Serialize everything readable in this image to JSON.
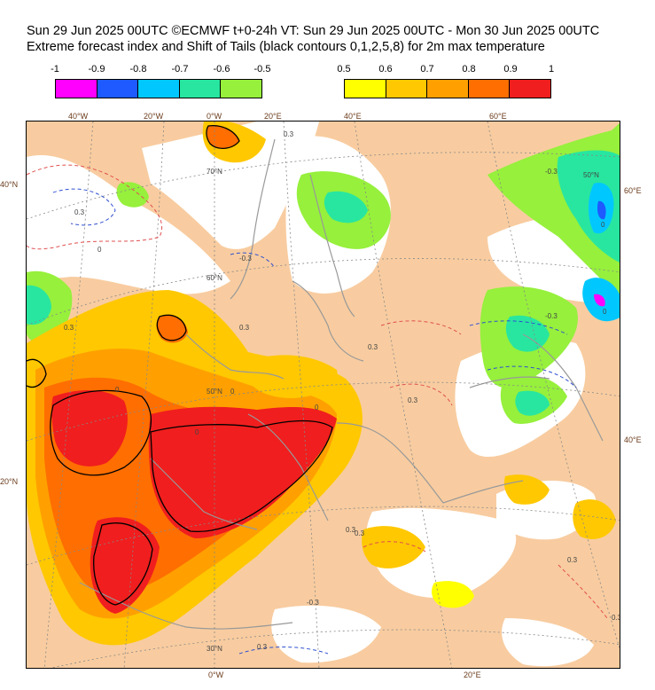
{
  "header": {
    "title_line1": "Sun 29 Jun 2025 00UTC ©ECMWF t+0-24h  VT: Sun 29 Jun 2025 00UTC - Mon 30 Jun 2025 00UTC",
    "title_line2": "Extreme forecast index and Shift of Tails (black contours 0,1,2,5,8) for 2m max temperature"
  },
  "colorbar_negative": {
    "ticks": [
      "-1",
      "-0.9",
      "-0.8",
      "-0.7",
      "-0.6",
      "-0.5"
    ],
    "colors": [
      "#ff00ff",
      "#1e5aff",
      "#00c8ff",
      "#28e6a0",
      "#96f03c"
    ]
  },
  "colorbar_positive": {
    "ticks": [
      "0.5",
      "0.6",
      "0.7",
      "0.8",
      "0.9",
      "1"
    ],
    "colors": [
      "#ffff00",
      "#ffc800",
      "#ffa000",
      "#ff6e00",
      "#f01e1e"
    ]
  },
  "map": {
    "background_color": "#f8cca0",
    "top_lon_labels": [
      "40°W",
      "20°W",
      "0°W",
      "20°E",
      "40°E",
      "60°E"
    ],
    "bottom_lon_labels": [
      "0°W",
      "20°E"
    ],
    "left_lat_labels": [
      "40°N",
      "20°N"
    ],
    "right_lat_labels": [
      "60°E",
      "40°E"
    ],
    "inner_lat_labels": [
      "70°N",
      "60°N",
      "50°N",
      "30°N",
      "50°N"
    ],
    "contour_labels": [
      "0.3",
      "0.3",
      "0.3",
      "0.3",
      "0.3",
      "0.3",
      "0.3",
      "0.3",
      "-0.3",
      "-0.3",
      "0.3",
      "0",
      "0",
      "0",
      "0",
      "0",
      "0",
      "0.3",
      "-0.3",
      "0.3",
      "-0.3",
      "0"
    ]
  }
}
